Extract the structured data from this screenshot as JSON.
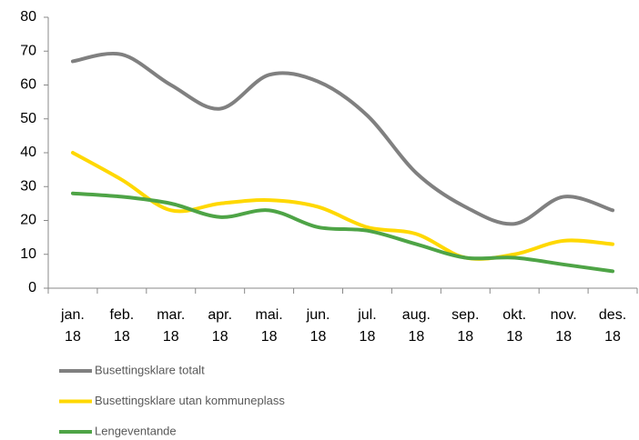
{
  "chart_data": {
    "type": "line",
    "categories": [
      "jan. 18",
      "feb. 18",
      "mar. 18",
      "apr. 18",
      "mai. 18",
      "jun. 18",
      "jul. 18",
      "aug. 18",
      "sep. 18",
      "okt. 18",
      "nov. 18",
      "des. 18"
    ],
    "series": [
      {
        "name": "Busettingsklare totalt",
        "color": "#808080",
        "values": [
          67,
          69,
          60,
          53,
          63,
          61,
          51,
          34,
          24,
          19,
          27,
          23
        ]
      },
      {
        "name": "Busettingsklare utan kommuneplass",
        "color": "#ffd800",
        "values": [
          40,
          32,
          23,
          25,
          26,
          24,
          18,
          16,
          9,
          10,
          14,
          13
        ]
      },
      {
        "name": "Lengeventande",
        "color": "#4ea446",
        "values": [
          28,
          27,
          25,
          21,
          23,
          18,
          17,
          13,
          9,
          9,
          7,
          5
        ]
      }
    ],
    "ylim": [
      0,
      80
    ],
    "yticks": [
      0,
      10,
      20,
      30,
      40,
      50,
      60,
      70,
      80
    ],
    "grid": false,
    "legend": "bottom"
  }
}
